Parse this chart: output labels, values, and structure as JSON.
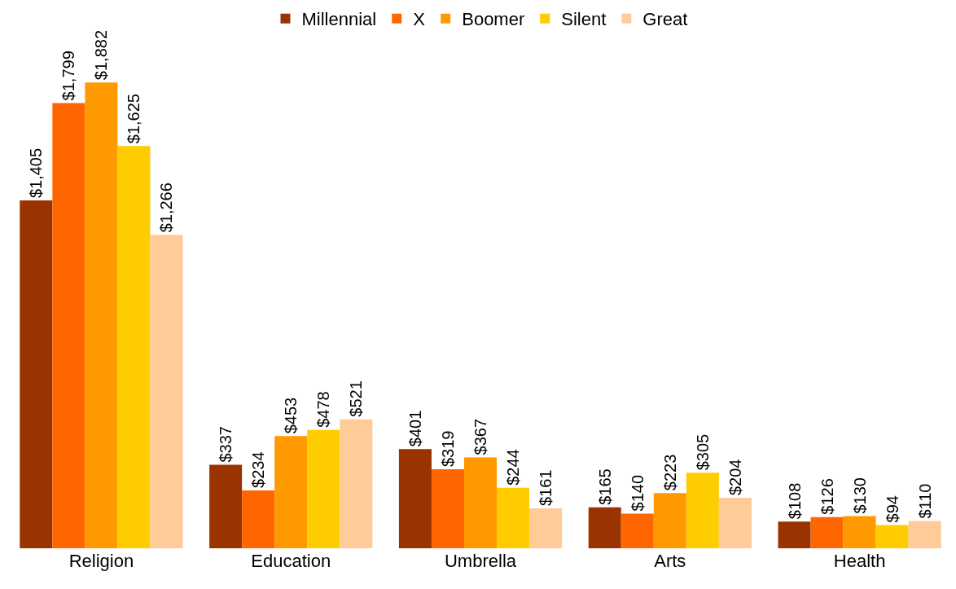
{
  "chart_data": {
    "type": "bar",
    "categories": [
      "Religion",
      "Education",
      "Umbrella",
      "Arts",
      "Health"
    ],
    "legend": "top",
    "series": [
      {
        "name": "Millennial",
        "color": "#993300",
        "values": [
          1405,
          337,
          401,
          165,
          108
        ],
        "value_labels": [
          "$1,405",
          "$337",
          "$401",
          "$165",
          "$108"
        ]
      },
      {
        "name": "X",
        "color": "#ff6600",
        "values": [
          1799,
          234,
          319,
          140,
          126
        ],
        "value_labels": [
          "$1,799",
          "$234",
          "$319",
          "$140",
          "$126"
        ]
      },
      {
        "name": "Boomer",
        "color": "#ff9900",
        "values": [
          1882,
          453,
          367,
          223,
          130
        ],
        "value_labels": [
          "$1,882",
          "$453",
          "$367",
          "$223",
          "$130"
        ]
      },
      {
        "name": "Silent",
        "color": "#ffcc00",
        "values": [
          1625,
          478,
          244,
          305,
          94
        ],
        "value_labels": [
          "$1,625",
          "$478",
          "$244",
          "$305",
          "$94"
        ]
      },
      {
        "name": "Great",
        "color": "#ffcc99",
        "values": [
          1266,
          521,
          161,
          204,
          110
        ],
        "value_labels": [
          "$1,266",
          "$521",
          "$161",
          "$204",
          "$110"
        ]
      }
    ]
  }
}
